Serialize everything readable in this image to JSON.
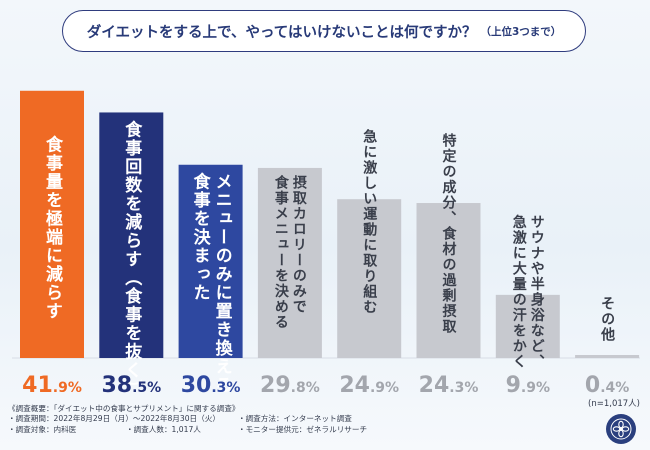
{
  "title": {
    "main": "ダイエットをする上で、やってはいけないことは何ですか？",
    "sub": "（上位3つまで）"
  },
  "colors": {
    "primary": "#ef6a24",
    "secondary": "#23327a",
    "tertiary": "#2e48a0",
    "gray": "#c7c9cf",
    "gray_text": "#3a3f4b"
  },
  "chart_data": {
    "type": "bar",
    "title": "ダイエットをする上で、やってはいけないことは何ですか？（上位3つまで）",
    "unit": "%",
    "categories": [
      "食事量を極端に減らす",
      "食事回数を減らす（食事を抜く）",
      "メニューのみに置き換える｜食事を決まった",
      "摂取カロリーのみで食事メニューを決める",
      "急に激しい運動に取り組む",
      "特定の成分、食材の過剰摂取",
      "サウナや半身浴など、急激に大量の汗をかく",
      "その他"
    ],
    "values": [
      41.9,
      38.5,
      30.3,
      29.8,
      24.9,
      24.3,
      9.9,
      0.4
    ],
    "value_labels": [
      {
        "int": "41",
        "dec": ".9%"
      },
      {
        "int": "38",
        "dec": ".5%"
      },
      {
        "int": "30",
        "dec": ".3%"
      },
      {
        "int": "29",
        "dec": ".8%"
      },
      {
        "int": "24",
        "dec": ".9%"
      },
      {
        "int": "24",
        "dec": ".3%"
      },
      {
        "int": "9",
        "dec": ".9%"
      },
      {
        "int": "0",
        "dec": ".4%"
      }
    ],
    "bar_label_columns": [
      [
        "食事量を極端に減らす"
      ],
      [
        "食事回数を減らす（食事を抜く）"
      ],
      [
        "メニューのみに置き換える",
        "食事を決まった"
      ],
      [
        "摂取カロリーのみで",
        "食事メニューを決める"
      ],
      [
        "急に激しい運動に取り組む"
      ],
      [
        "特定の成分、食材の過剰摂取"
      ],
      [
        "サウナや半身浴など、",
        "急激に大量の汗をかく"
      ],
      [
        "その他"
      ]
    ],
    "ylim": [
      0,
      45
    ],
    "sample_note": "(n=1,017人)"
  },
  "footer": {
    "heading": "《調査概要：「ダイエット中の食事とサプリメント」に関する調査》",
    "period": "・調査期間：2022年8月29日（月）〜2022年8月30日（火）",
    "method": "・調査方法：インターネット調査",
    "target": "・調査対象：内科医",
    "count": "・調査人数：1,017人",
    "provider": "・モニター提供元：ゼネラルリサーチ"
  }
}
